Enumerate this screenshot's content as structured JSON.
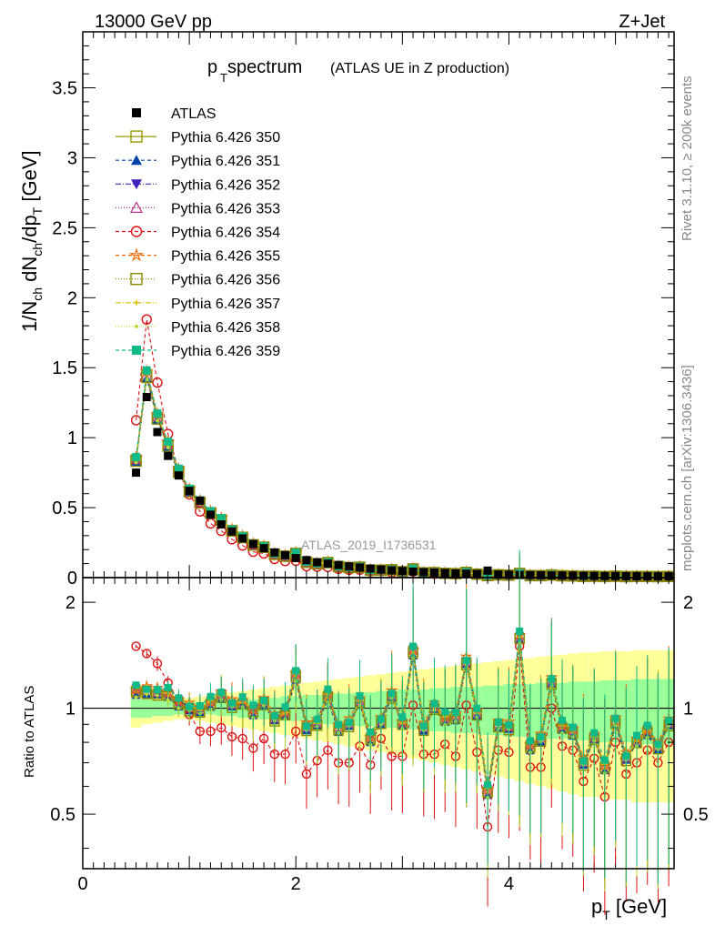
{
  "header": {
    "energy_label": "13000 GeV pp",
    "process_label": "Z+Jet",
    "title_main": "p",
    "title_sub": "T",
    "title_rest": " spectrum",
    "title_paren": "(ATLAS UE in Z production)",
    "analysis_id": "ATLAS_2019_I1736531",
    "side_label_top": "Rivet 3.1.10, ≥ 200k events",
    "side_label_bottom": "mcplots.cern.ch [arXiv:1306.3436]"
  },
  "axes": {
    "ylabel_main": "1/N_ch dN_ch/dp_T [GeV]",
    "ylabel_ratio": "Ratio to ATLAS",
    "xlabel": "p_T [GeV]",
    "main_y_ticks": [
      "0",
      "0.5",
      "1",
      "1.5",
      "2",
      "2.5",
      "3",
      "3.5"
    ],
    "ratio_y_ticks": [
      "0.5",
      "1",
      "2"
    ],
    "x_ticks": [
      "0",
      "2",
      "4"
    ]
  },
  "colors": {
    "band_yellow": "#ffff99",
    "band_green": "#99ff99",
    "data": "#000000"
  },
  "legend": [
    {
      "label": "ATLAS",
      "color": "#000000",
      "marker": "sq-fill",
      "dash": ""
    },
    {
      "label": "Pythia 6.426 350",
      "color": "#999900",
      "marker": "sq-open",
      "dash": "",
      "series": 0
    },
    {
      "label": "Pythia 6.426 351",
      "color": "#0044aa",
      "marker": "tri-up",
      "dash": "4,3",
      "series": 1
    },
    {
      "label": "Pythia 6.426 352",
      "color": "#4422bb",
      "marker": "tri-down",
      "dash": "6,2,1,2",
      "series": 2
    },
    {
      "label": "Pythia 6.426 353",
      "color": "#bb3388",
      "marker": "tri-open",
      "dash": "1,2",
      "series": 3
    },
    {
      "label": "Pythia 6.426 354",
      "color": "#dd1111",
      "marker": "circ-open",
      "dash": "4,3",
      "series": 4
    },
    {
      "label": "Pythia 6.426 355",
      "color": "#ee6600",
      "marker": "star",
      "dash": "4,3",
      "series": 5
    },
    {
      "label": "Pythia 6.426 356",
      "color": "#888800",
      "marker": "sq-open",
      "dash": "1,2",
      "series": 6
    },
    {
      "label": "Pythia 6.426 357",
      "color": "#ddbb00",
      "marker": "tick",
      "dash": "6,2,1,2",
      "series": 7
    },
    {
      "label": "Pythia 6.426 358",
      "color": "#bbdd33",
      "marker": "dot",
      "dash": "1,2",
      "series": 8
    },
    {
      "label": "Pythia 6.426 359",
      "color": "#11bb88",
      "marker": "sq-fill",
      "dash": "4,3",
      "series": 9
    }
  ],
  "chart_data": {
    "type": "line",
    "title": "pT spectrum (ATLAS UE in Z production)",
    "xlabel": "p_T [GeV]",
    "ylabel": "1/N_ch dN_ch/dp_T [GeV]",
    "xlim": [
      0,
      5.55
    ],
    "ylim_main": [
      0,
      3.9
    ],
    "ylim_ratio": [
      0.35,
      2.35
    ],
    "ratio_log": true,
    "x": [
      0.5,
      0.6,
      0.7,
      0.8,
      0.9,
      1.0,
      1.1,
      1.2,
      1.3,
      1.4,
      1.5,
      1.6,
      1.7,
      1.8,
      1.9,
      2.0,
      2.1,
      2.2,
      2.3,
      2.4,
      2.5,
      2.6,
      2.7,
      2.8,
      2.9,
      3.0,
      3.1,
      3.2,
      3.3,
      3.4,
      3.5,
      3.6,
      3.7,
      3.8,
      3.9,
      4.0,
      4.1,
      4.2,
      4.3,
      4.4,
      4.5,
      4.6,
      4.7,
      4.8,
      4.9,
      5.0,
      5.1,
      5.2,
      5.3,
      5.4,
      5.5
    ],
    "atlas_values": [
      0.75,
      1.29,
      1.04,
      0.87,
      0.73,
      0.62,
      0.55,
      0.45,
      0.38,
      0.33,
      0.28,
      0.24,
      0.21,
      0.18,
      0.16,
      0.14,
      0.125,
      0.11,
      0.1,
      0.09,
      0.08,
      0.072,
      0.065,
      0.058,
      0.052,
      0.047,
      0.043,
      0.039,
      0.036,
      0.033,
      0.03,
      0.028,
      0.026,
      0.05,
      0.022,
      0.02,
      0.019,
      0.018,
      0.017,
      0.016,
      0.015,
      0.014,
      0.013,
      0.012,
      0.011,
      0.011,
      0.01,
      0.01,
      0.009,
      0.009,
      0.009
    ],
    "ratio_band_green": [
      0.06,
      0.06,
      0.05,
      0.05,
      0.04,
      0.04,
      0.04,
      0.04,
      0.05,
      0.05,
      0.06,
      0.06,
      0.07,
      0.07,
      0.08,
      0.08,
      0.09,
      0.09,
      0.1,
      0.1,
      0.1,
      0.11,
      0.11,
      0.12,
      0.12,
      0.13,
      0.13,
      0.13,
      0.14,
      0.14,
      0.15,
      0.15,
      0.15,
      0.16,
      0.16,
      0.17,
      0.17,
      0.17,
      0.18,
      0.18,
      0.18,
      0.19,
      0.19,
      0.19,
      0.2,
      0.2,
      0.2,
      0.21,
      0.21,
      0.21,
      0.21
    ],
    "ratio_band_yellow": [
      0.12,
      0.1,
      0.09,
      0.08,
      0.07,
      0.07,
      0.08,
      0.09,
      0.1,
      0.11,
      0.12,
      0.13,
      0.14,
      0.15,
      0.16,
      0.17,
      0.18,
      0.19,
      0.2,
      0.21,
      0.22,
      0.23,
      0.24,
      0.25,
      0.26,
      0.27,
      0.28,
      0.29,
      0.3,
      0.31,
      0.32,
      0.33,
      0.34,
      0.35,
      0.36,
      0.37,
      0.38,
      0.39,
      0.4,
      0.41,
      0.42,
      0.43,
      0.44,
      0.44,
      0.45,
      0.45,
      0.45,
      0.46,
      0.46,
      0.46,
      0.46
    ],
    "ratio_mc_base": [
      1.12,
      1.12,
      1.1,
      1.09,
      1.04,
      1.0,
      0.98,
      1.03,
      1.09,
      1.02,
      1.03,
      0.98,
      1.04,
      0.93,
      0.96,
      1.24,
      0.88,
      0.9,
      1.08,
      0.88,
      0.9,
      1.04,
      0.82,
      0.92,
      1.08,
      0.9,
      1.45,
      0.88,
      1.0,
      0.93,
      0.95,
      1.35,
      0.96,
      0.58,
      0.9,
      0.88,
      1.58,
      0.78,
      0.82,
      1.18,
      0.88,
      0.86,
      0.7,
      0.82,
      0.68,
      0.92,
      0.72,
      0.8,
      0.86,
      0.78,
      0.9
    ],
    "ratio_354": [
      1.5,
      1.43,
      1.34,
      1.18,
      1.05,
      0.96,
      0.86,
      0.86,
      0.88,
      0.83,
      0.82,
      0.77,
      0.82,
      0.74,
      0.74,
      0.86,
      0.65,
      0.71,
      0.76,
      0.7,
      0.7,
      0.78,
      0.69,
      0.82,
      0.73,
      0.73,
      1.02,
      0.74,
      0.74,
      0.79,
      0.73,
      1.02,
      0.75,
      0.46,
      0.76,
      0.75,
      1.5,
      0.68,
      0.68,
      1.0,
      0.78,
      0.76,
      0.62,
      0.72,
      0.56,
      0.8,
      0.65,
      0.7,
      0.76,
      0.7,
      0.8
    ],
    "series_offsets": [
      0.0,
      -0.03,
      0.02,
      0.01,
      0,
      0.04,
      -0.02,
      0.03,
      -0.04,
      0.05
    ],
    "series_names": [
      "Pythia 6.426 350",
      "Pythia 6.426 351",
      "Pythia 6.426 352",
      "Pythia 6.426 353",
      "Pythia 6.426 354",
      "Pythia 6.426 355",
      "Pythia 6.426 356",
      "Pythia 6.426 357",
      "Pythia 6.426 358",
      "Pythia 6.426 359"
    ]
  }
}
